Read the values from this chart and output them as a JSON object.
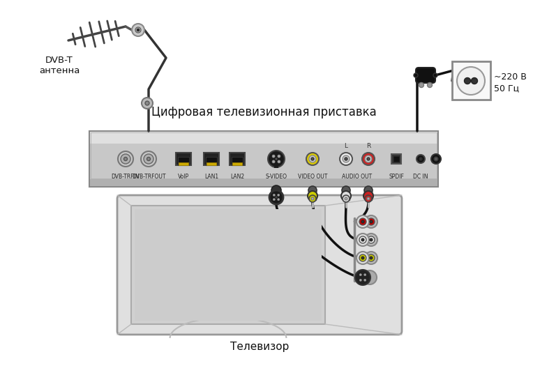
{
  "title": "Цифровая телевизионная приставка",
  "antenna_label": "DVB-T\nантенна",
  "power_label": "~220 В\n50 Гц",
  "tv_label": "Телевизор",
  "bg_color": "#ffffff",
  "box_color": "#d8d8d8",
  "box_edge": "#888888",
  "tv_color": "#e0e0e0",
  "tv_edge": "#999999",
  "port_labels": [
    "DVB-TRFIN",
    "DVB-TRFOUT",
    "VoIP",
    "LAN1",
    "LAN2",
    "S-VIDEO",
    "VIDEO OUT",
    "AUDIO OUT",
    "SPDIF",
    "DC IN"
  ],
  "wire_color": "#111111",
  "rca_plug_colors_top": [
    "#333333",
    "#cccc00",
    "#eeeeee",
    "#cc0000"
  ],
  "tv_port_colors": [
    "#cc0000",
    "#eeeeee",
    "#cccc00",
    "#333333"
  ]
}
